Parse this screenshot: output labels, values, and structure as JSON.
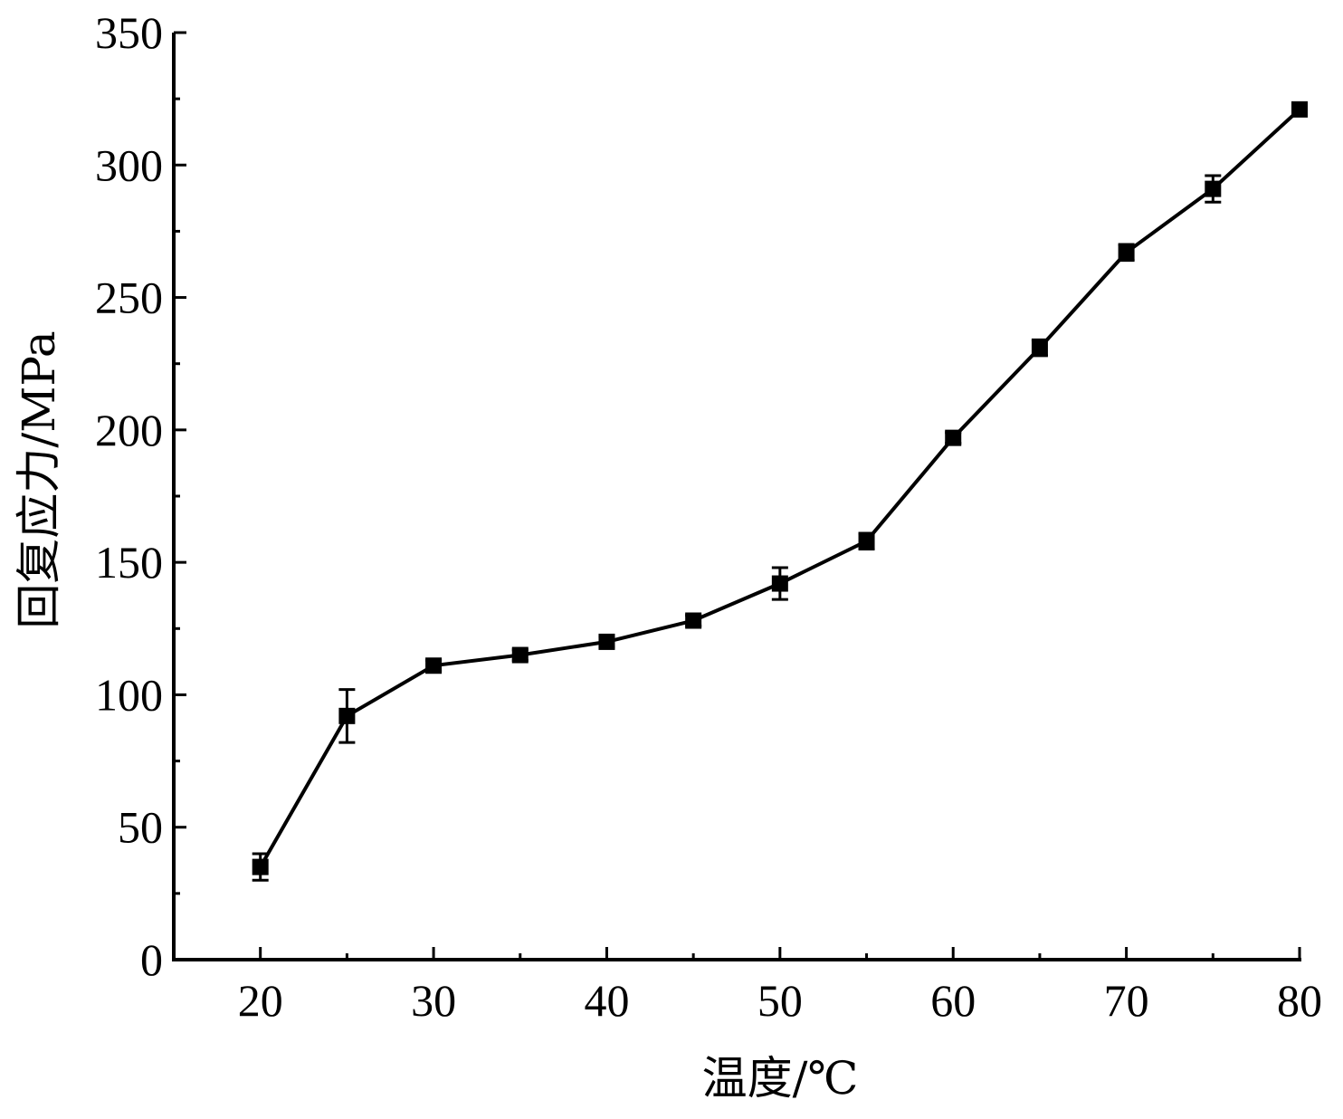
{
  "chart_data": {
    "type": "line",
    "xlabel": "温度/℃",
    "ylabel": "回复应力/MPa",
    "xlim": [
      15,
      80
    ],
    "ylim": [
      0,
      350
    ],
    "x_ticks": [
      20,
      30,
      40,
      50,
      60,
      70,
      80
    ],
    "x_minor_ticks": [
      25,
      35,
      45,
      55,
      65,
      75
    ],
    "y_ticks": [
      0,
      50,
      100,
      150,
      200,
      250,
      300,
      350
    ],
    "y_minor_ticks": [
      25,
      75,
      125,
      175,
      225,
      275,
      325
    ],
    "grid": false,
    "series": [
      {
        "marker": "square",
        "color": "#000000",
        "x": [
          20,
          25,
          30,
          35,
          40,
          45,
          50,
          55,
          60,
          65,
          70,
          75,
          80
        ],
        "y": [
          35,
          92,
          111,
          115,
          120,
          128,
          142,
          158,
          197,
          231,
          267,
          291,
          321
        ],
        "error": [
          5,
          10,
          2,
          2,
          2,
          2,
          6,
          3,
          2,
          3,
          3,
          5,
          2
        ]
      }
    ]
  }
}
